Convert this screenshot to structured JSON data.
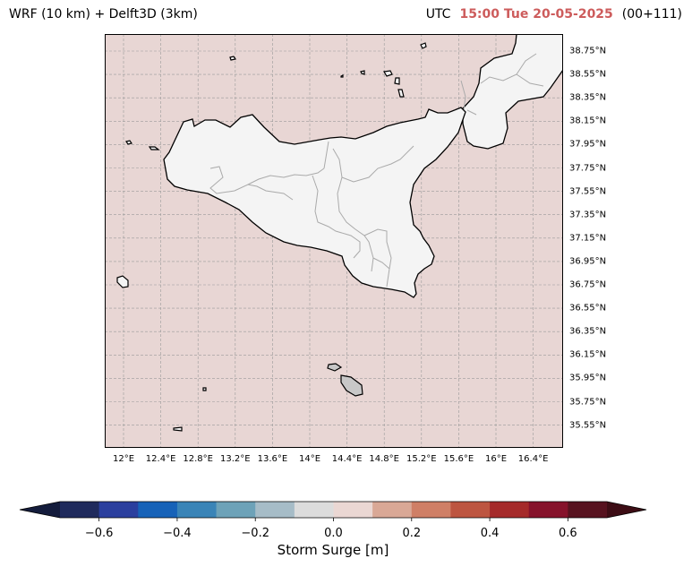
{
  "header": {
    "left_title": "WRF (10 km) + Delft3D (3km)",
    "utc_label": "UTC",
    "timestamp": "15:00 Tue 20-05-2025",
    "run_info": "(00+111)"
  },
  "map": {
    "sea_color": "#e8d6d4",
    "land_color": "#f4f4f4",
    "coast_color": "#000000",
    "border_color": "#aaaaaa",
    "grid": true,
    "lat_labels": [
      "38.75°N",
      "38.55°N",
      "38.35°N",
      "38.15°N",
      "37.95°N",
      "37.75°N",
      "37.55°N",
      "37.35°N",
      "37.15°N",
      "36.95°N",
      "36.75°N",
      "36.55°N",
      "36.35°N",
      "36.15°N",
      "35.95°N",
      "35.75°N",
      "35.55°N"
    ],
    "lon_labels": [
      "12°E",
      "12.4°E",
      "12.8°E",
      "13.2°E",
      "13.6°E",
      "14°E",
      "14.4°E",
      "14.8°E",
      "15.2°E",
      "15.6°E",
      "16°E",
      "16.4°E"
    ]
  },
  "colorbar": {
    "label": "Storm Surge [m]",
    "ticks": [
      "−0.6",
      "−0.4",
      "−0.2",
      "0.0",
      "0.2",
      "0.4",
      "0.6"
    ],
    "colors": [
      "#1f2a5c",
      "#2b3f9e",
      "#1762b8",
      "#3a84b7",
      "#6da2b8",
      "#a6bcc7",
      "#dcdcdc",
      "#ead7d3",
      "#d9a896",
      "#cf7f66",
      "#bd5540",
      "#a52a2a",
      "#86122b",
      "#57121f"
    ],
    "under_color": "#141c3c",
    "over_color": "#3d0d15",
    "range": [
      -0.7,
      0.7
    ]
  }
}
